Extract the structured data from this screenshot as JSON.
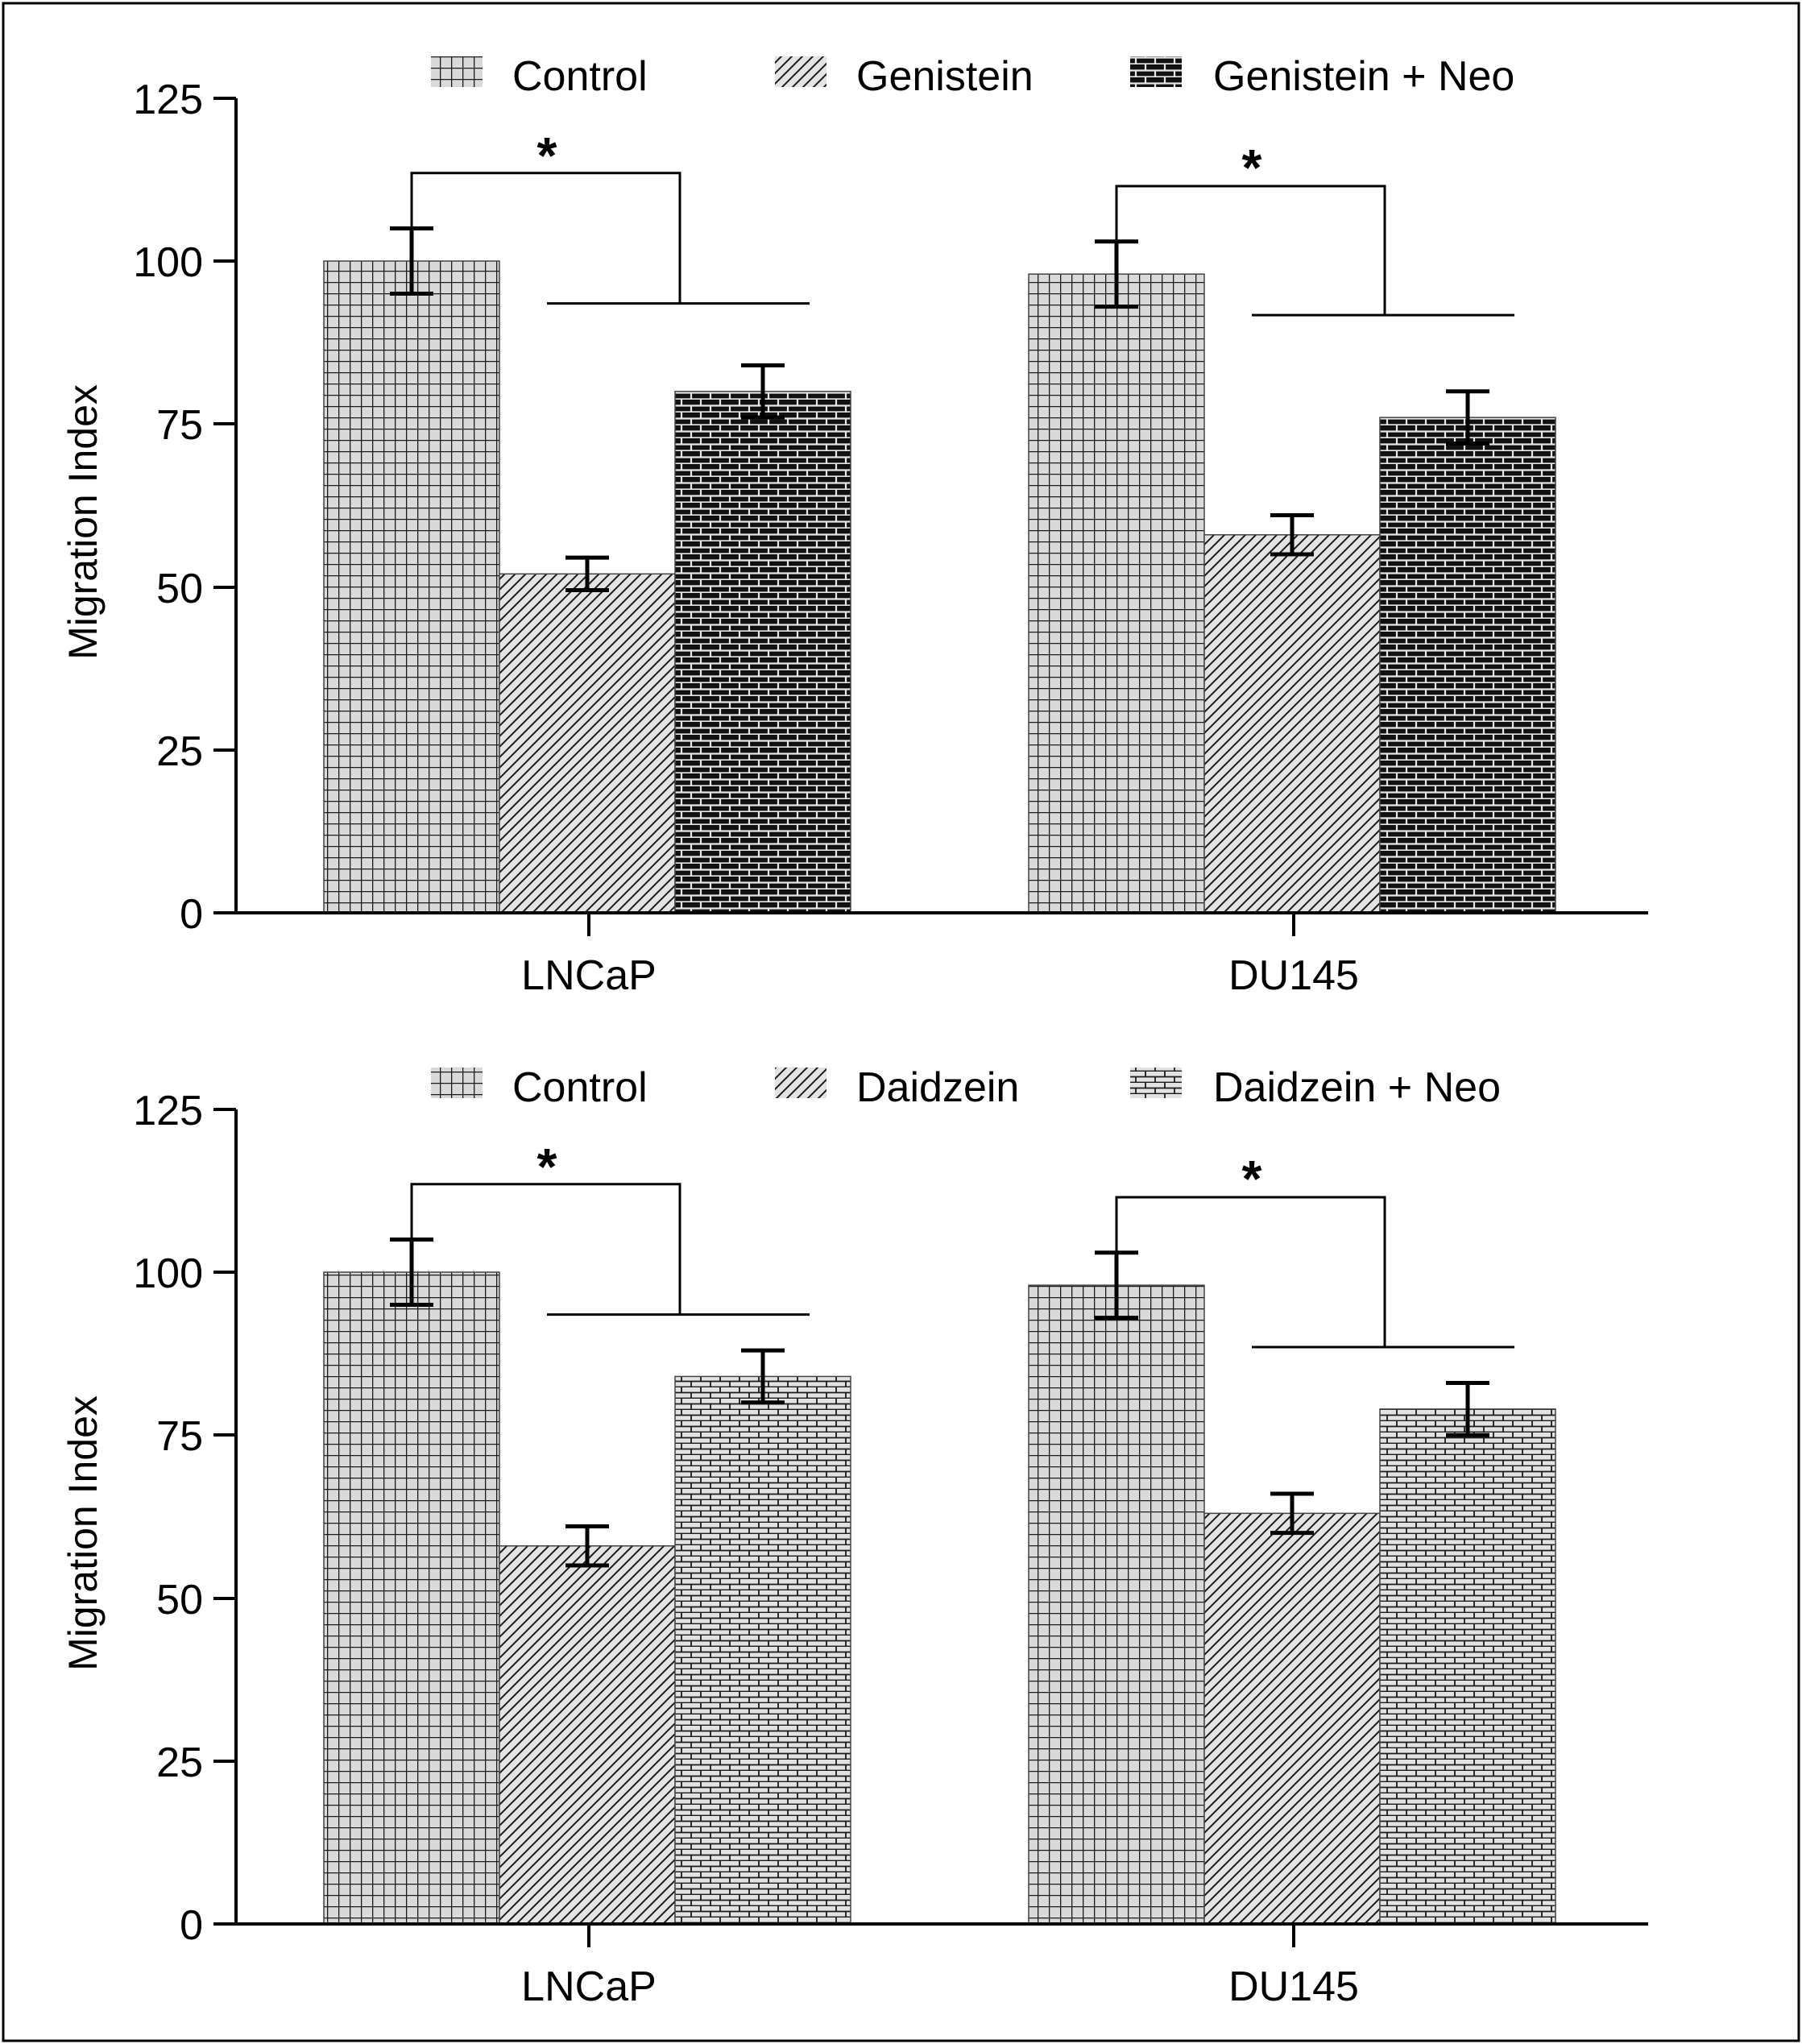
{
  "chart_data": [
    {
      "type": "bar",
      "title": "",
      "xlabel": "",
      "ylabel": "Migration Index",
      "ylim": [
        0,
        125
      ],
      "yticks": [
        "0",
        "25",
        "50",
        "75",
        "100",
        "125"
      ],
      "categories": [
        "LNCaP",
        "DU145"
      ],
      "legend_position": "top",
      "series": [
        {
          "name": "Control",
          "pattern": "grid",
          "values": [
            100,
            98
          ],
          "errors": [
            5,
            5
          ]
        },
        {
          "name": "Genistein",
          "pattern": "diagonal",
          "values": [
            52,
            58
          ],
          "errors": [
            2.5,
            3
          ]
        },
        {
          "name": "Genistein + Neo",
          "pattern": "brick-dark",
          "values": [
            80,
            76
          ],
          "errors": [
            4,
            4
          ]
        }
      ],
      "annotations": [
        {
          "category": "LNCaP",
          "text": "*",
          "bracket_top": 113.5,
          "bracket_low": 93.5
        },
        {
          "category": "DU145",
          "text": "*",
          "bracket_top": 111.5,
          "bracket_low": 91.7
        }
      ]
    },
    {
      "type": "bar",
      "title": "",
      "xlabel": "",
      "ylabel": "Migration Index",
      "ylim": [
        0,
        125
      ],
      "yticks": [
        "0",
        "25",
        "50",
        "75",
        "100",
        "125"
      ],
      "categories": [
        "LNCaP",
        "DU145"
      ],
      "legend_position": "top",
      "series": [
        {
          "name": "Control",
          "pattern": "grid",
          "values": [
            100,
            98
          ],
          "errors": [
            5,
            5
          ]
        },
        {
          "name": "Daidzein",
          "pattern": "diagonal",
          "values": [
            58,
            63
          ],
          "errors": [
            3,
            3
          ]
        },
        {
          "name": "Daidzein + Neo",
          "pattern": "brick-light",
          "values": [
            84,
            79
          ],
          "errors": [
            4,
            4
          ]
        }
      ],
      "annotations": [
        {
          "category": "LNCaP",
          "text": "*",
          "bracket_top": 113.5,
          "bracket_low": 93.5
        },
        {
          "category": "DU145",
          "text": "*",
          "bracket_top": 111.5,
          "bracket_low": 88.5
        }
      ]
    }
  ]
}
